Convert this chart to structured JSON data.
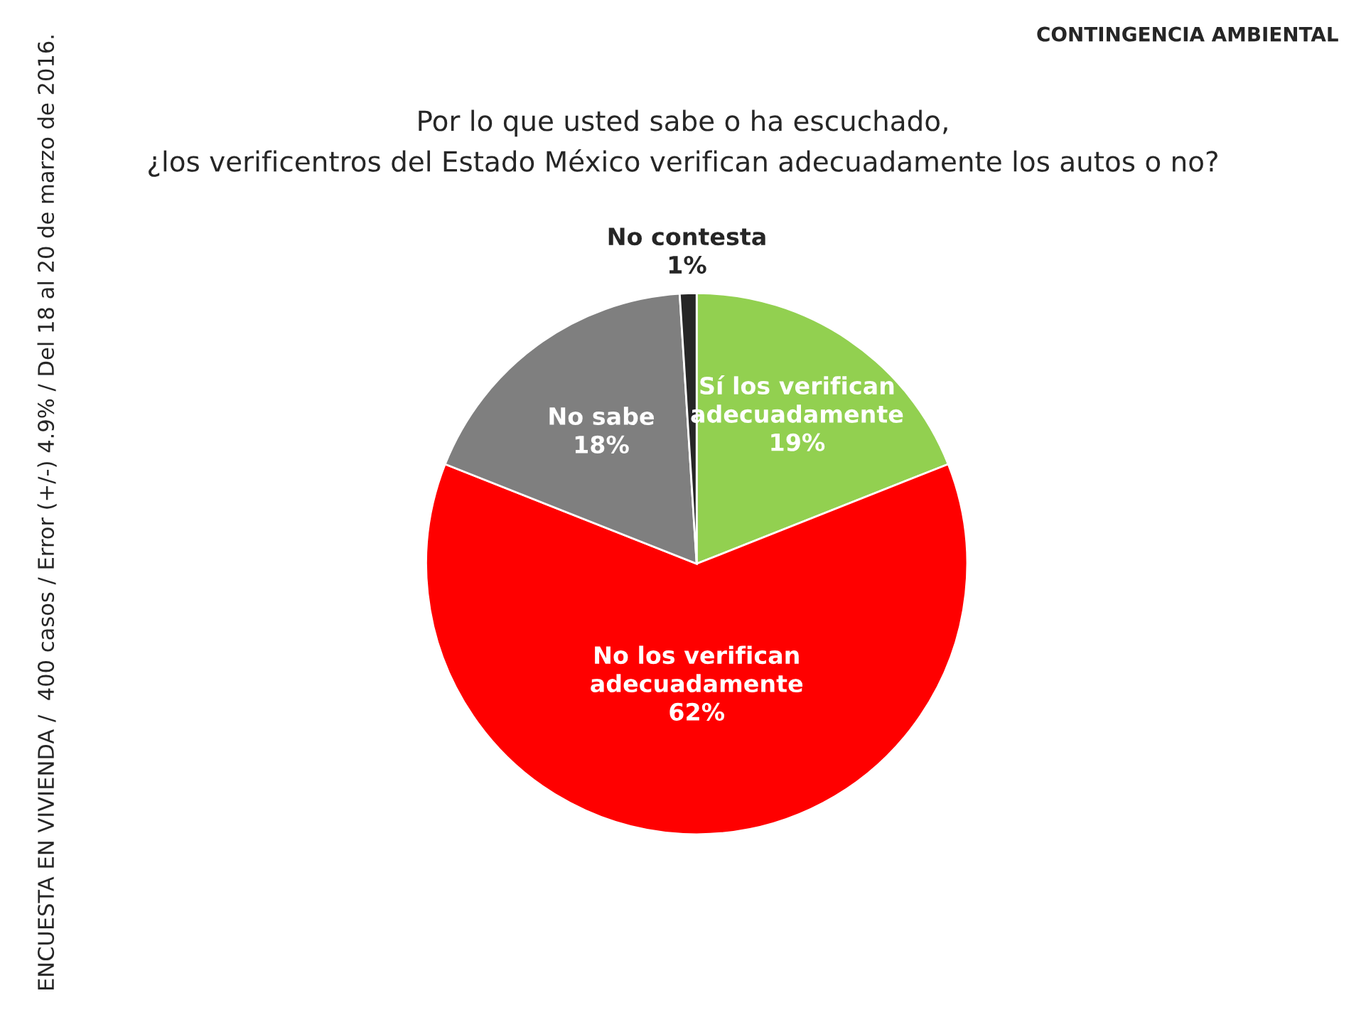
{
  "chart_data": {
    "type": "pie",
    "title": "Por lo que usted sabe o ha escuchado,\n¿los verificentros del Estado México verifican adecuadamente los autos o no?",
    "categories": [
      "Sí los verifican\nadecuadamente",
      "No los verifican\nadecuadamente",
      "No sabe",
      "No contesta"
    ],
    "values": [
      19,
      62,
      18,
      1
    ],
    "value_labels": [
      "19%",
      "62%",
      "18%",
      "1%"
    ],
    "colors": [
      "#92d050",
      "#ff0000",
      "#7f7f7f",
      "#262626"
    ],
    "annotations": [
      "CONTINGENCIA AMBIENTAL",
      "ENCUESTA EN VIVIENDA /  400 casos / Error (+/-) 4.9% / Del 18 al 20 de marzo de 2016."
    ]
  }
}
